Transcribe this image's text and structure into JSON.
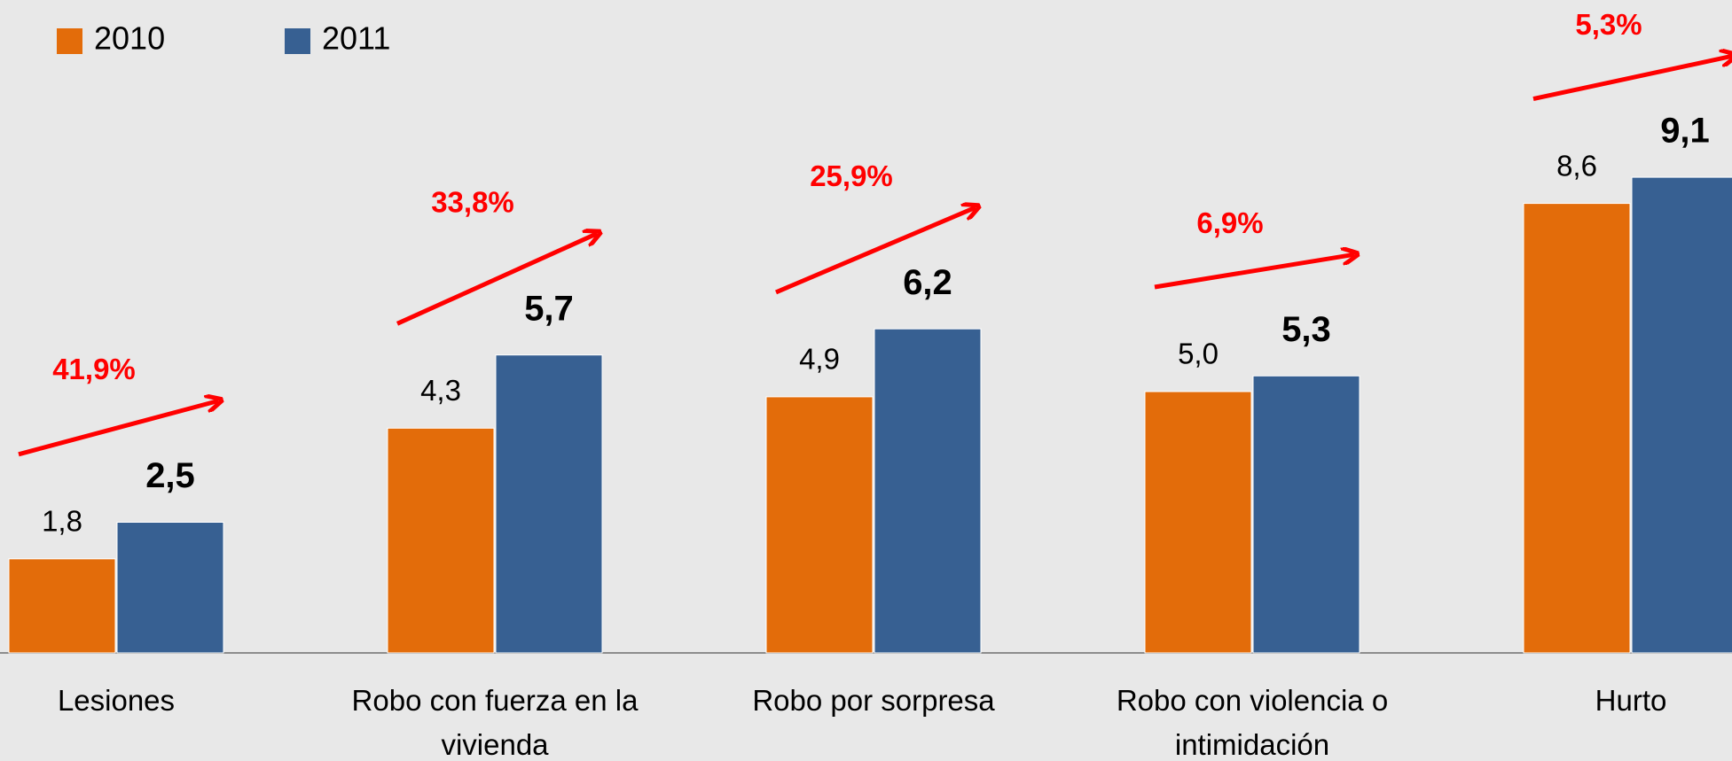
{
  "chart_data": {
    "type": "bar",
    "categories": [
      "Lesiones",
      "Robo con fuerza en la vivienda",
      "Robo por sorpresa",
      "Robo con violencia o intimidación",
      "Hurto"
    ],
    "series": [
      {
        "name": "2010",
        "color": "#e36c0a",
        "values": [
          1.8,
          4.3,
          4.9,
          5.0,
          8.6
        ],
        "value_labels": [
          "1,8",
          "4,3",
          "4,9",
          "5,0",
          "8,6"
        ]
      },
      {
        "name": "2011",
        "color": "#376092",
        "values": [
          2.5,
          5.7,
          6.2,
          5.3,
          9.1
        ],
        "value_labels": [
          "2,5",
          "5,7",
          "6,2",
          "5,3",
          "9,1"
        ]
      }
    ],
    "annotations": [
      "41,9%",
      "33,8%",
      "25,9%",
      "6,9%",
      "5,3%"
    ],
    "legend": "top-left"
  }
}
